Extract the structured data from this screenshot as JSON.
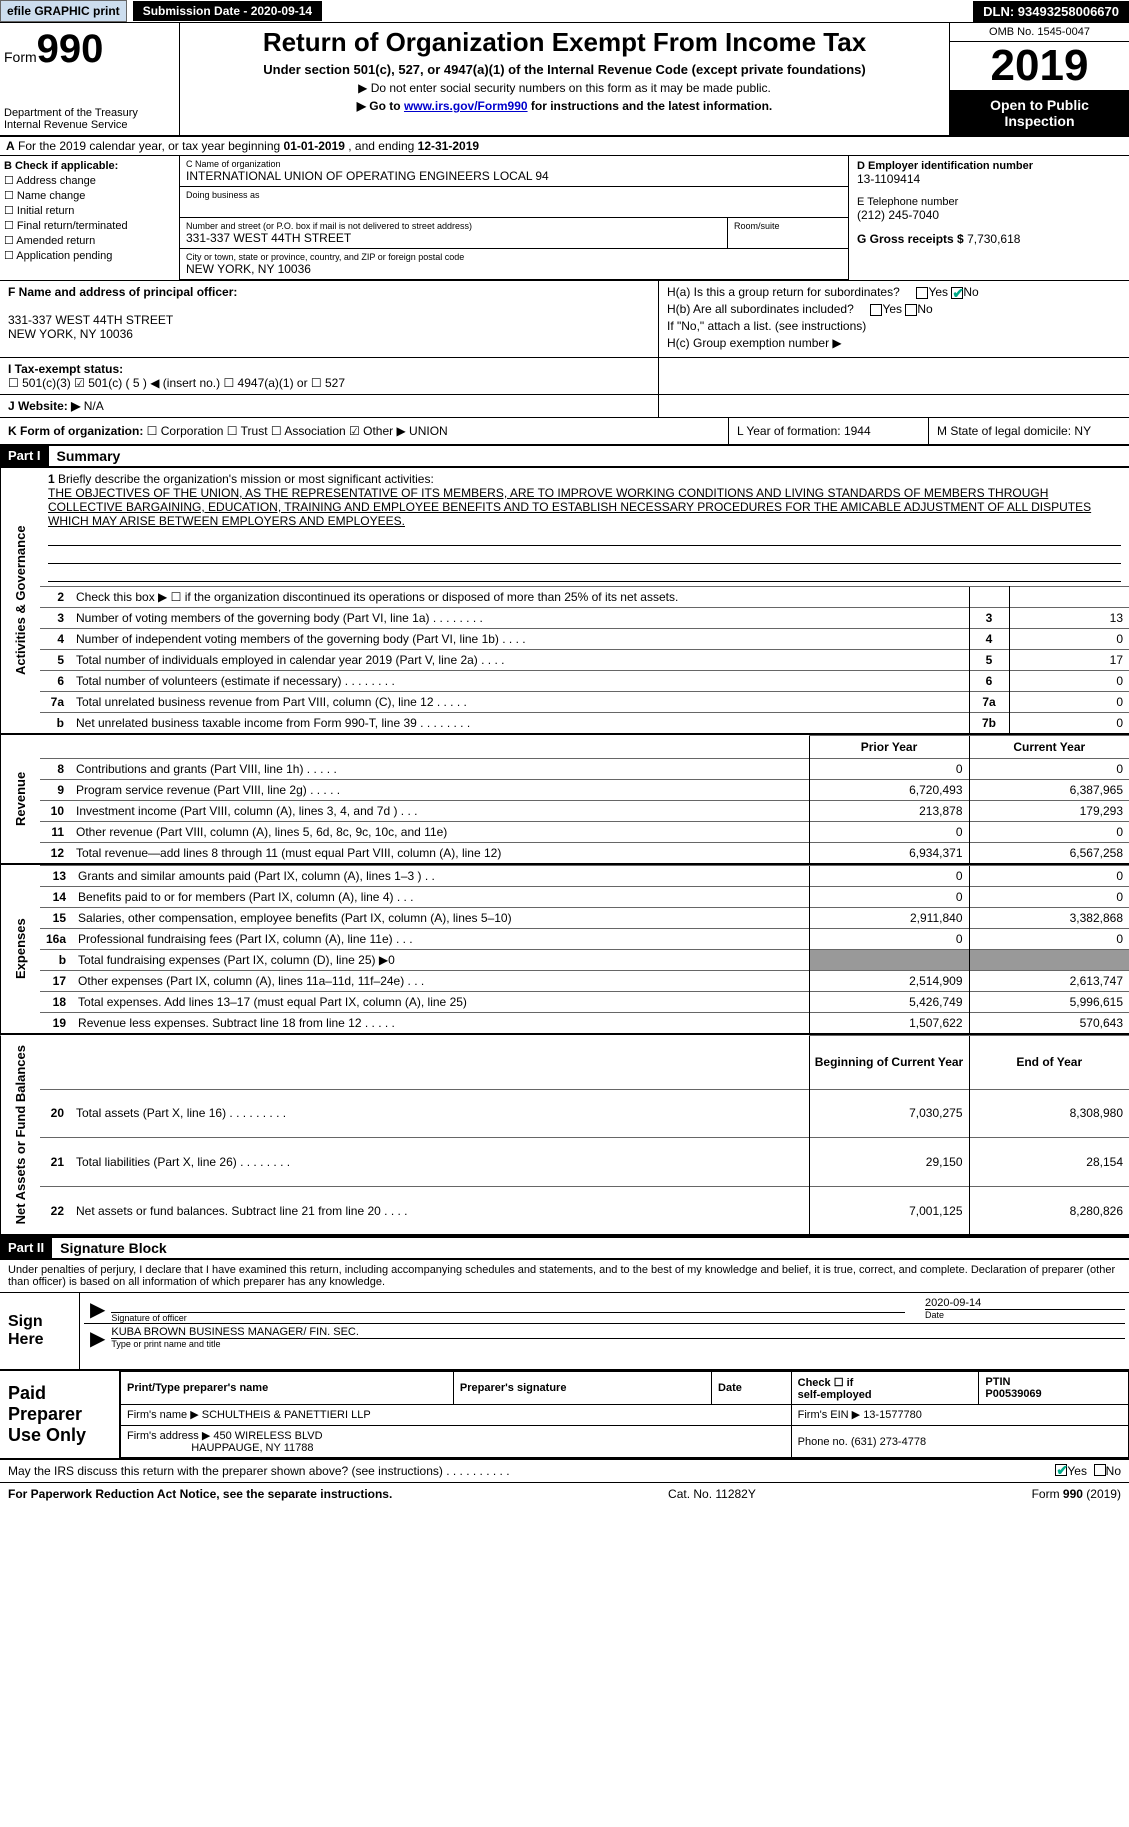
{
  "topbar": {
    "efile": "efile GRAPHIC print",
    "subdate_label": "Submission Date - 2020-09-14",
    "dln": "DLN: 93493258006670"
  },
  "header": {
    "form_prefix": "Form",
    "form_no": "990",
    "dept": "Department of the Treasury\nInternal Revenue Service",
    "title": "Return of Organization Exempt From Income Tax",
    "subtitle": "Under section 501(c), 527, or 4947(a)(1) of the Internal Revenue Code (except private foundations)",
    "note1": "▶ Do not enter social security numbers on this form as it may be made public.",
    "note2_pre": "▶ Go to ",
    "note2_link": "www.irs.gov/Form990",
    "note2_post": " for instructions and the latest information.",
    "omb": "OMB No. 1545-0047",
    "year": "2019",
    "open": "Open to Public Inspection"
  },
  "lineA": {
    "pre": "A",
    "txt": "For the 2019 calendar year, or tax year beginning ",
    "b1": "01-01-2019",
    "mid": " , and ending ",
    "b2": "12-31-2019"
  },
  "secB": {
    "hdr": "B Check if applicable:",
    "items": [
      "☐ Address change",
      "☐ Name change",
      "☐ Initial return",
      "☐ Final return/terminated",
      "☐ Amended return",
      "☐ Application pending"
    ]
  },
  "secC": {
    "name_lbl": "C Name of organization",
    "name": "INTERNATIONAL UNION OF OPERATING ENGINEERS LOCAL 94",
    "dba_lbl": "Doing business as",
    "addr_lbl": "Number and street (or P.O. box if mail is not delivered to street address)",
    "room_lbl": "Room/suite",
    "addr": "331-337 WEST 44TH STREET",
    "city_lbl": "City or town, state or province, country, and ZIP or foreign postal code",
    "city": "NEW YORK, NY  10036"
  },
  "secDE": {
    "d_lbl": "D Employer identification number",
    "d_val": "13-1109414",
    "e_lbl": "E Telephone number",
    "e_val": "(212) 245-7040",
    "g_lbl": "G Gross receipts $ ",
    "g_val": "7,730,618"
  },
  "secF": {
    "lbl": "F Name and address of principal officer:",
    "addr1": "331-337 WEST 44TH STREET",
    "addr2": "NEW YORK, NY 10036"
  },
  "secH": {
    "ha": "H(a)  Is this a group return for subordinates?",
    "hb": "H(b)  Are all subordinates included?",
    "hnote": "If \"No,\" attach a list. (see instructions)",
    "hc": "H(c)  Group exemption number ▶"
  },
  "secI": {
    "lbl": "I  Tax-exempt status:",
    "opts": "☐ 501(c)(3)   ☑ 501(c) ( 5 ) ◀ (insert no.)   ☐ 4947(a)(1) or   ☐ 527"
  },
  "secJ": {
    "lbl": "J  Website: ▶",
    "val": "N/A"
  },
  "secK": {
    "lbl": "K Form of organization:",
    "opts": "☐ Corporation  ☐ Trust  ☐ Association  ☑ Other ▶",
    "val": "UNION"
  },
  "secLM": {
    "l": "L Year of formation: 1944",
    "m": "M State of legal domicile: NY"
  },
  "part1": {
    "hdr": "Part I",
    "title": "Summary"
  },
  "mission": {
    "n": "1",
    "lbl": "Briefly describe the organization's mission or most significant activities:",
    "txt": "THE OBJECTIVES OF THE UNION, AS THE REPRESENTATIVE OF ITS MEMBERS, ARE TO IMPROVE WORKING CONDITIONS AND LIVING STANDARDS OF MEMBERS THROUGH COLLECTIVE BARGAINING, EDUCATION, TRAINING AND EMPLOYEE BENEFITS AND TO ESTABLISH NECESSARY PROCEDURES FOR THE AMICABLE ADJUSTMENT OF ALL DISPUTES WHICH MAY ARISE BETWEEN EMPLOYERS AND EMPLOYEES."
  },
  "gov_rows": [
    {
      "n": "2",
      "t": "Check this box ▶ ☐ if the organization discontinued its operations or disposed of more than 25% of its net assets.",
      "box": "",
      "v": ""
    },
    {
      "n": "3",
      "t": "Number of voting members of the governing body (Part VI, line 1a)  .  .  .  .  .  .  .  .",
      "box": "3",
      "v": "13"
    },
    {
      "n": "4",
      "t": "Number of independent voting members of the governing body (Part VI, line 1b)  .  .  .  .",
      "box": "4",
      "v": "0"
    },
    {
      "n": "5",
      "t": "Total number of individuals employed in calendar year 2019 (Part V, line 2a)  .  .  .  .",
      "box": "5",
      "v": "17"
    },
    {
      "n": "6",
      "t": "Total number of volunteers (estimate if necessary)  .  .  .  .  .  .  .  .",
      "box": "6",
      "v": "0"
    },
    {
      "n": "7a",
      "t": "Total unrelated business revenue from Part VIII, column (C), line 12  .  .  .  .  .",
      "box": "7a",
      "v": "0"
    },
    {
      "n": "b",
      "t": "Net unrelated business taxable income from Form 990-T, line 39  .  .  .  .  .  .  .  .",
      "box": "7b",
      "v": "0"
    }
  ],
  "col_hdrs": {
    "py": "Prior Year",
    "cy": "Current Year"
  },
  "rev_rows": [
    {
      "n": "8",
      "t": "Contributions and grants (Part VIII, line 1h)  .  .  .  .  .",
      "py": "0",
      "cy": "0"
    },
    {
      "n": "9",
      "t": "Program service revenue (Part VIII, line 2g)  .  .  .  .  .",
      "py": "6,720,493",
      "cy": "6,387,965"
    },
    {
      "n": "10",
      "t": "Investment income (Part VIII, column (A), lines 3, 4, and 7d )  .  .  .",
      "py": "213,878",
      "cy": "179,293"
    },
    {
      "n": "11",
      "t": "Other revenue (Part VIII, column (A), lines 5, 6d, 8c, 9c, 10c, and 11e)",
      "py": "0",
      "cy": "0"
    },
    {
      "n": "12",
      "t": "Total revenue—add lines 8 through 11 (must equal Part VIII, column (A), line 12)",
      "py": "6,934,371",
      "cy": "6,567,258"
    }
  ],
  "exp_rows": [
    {
      "n": "13",
      "t": "Grants and similar amounts paid (Part IX, column (A), lines 1–3 )  .  .",
      "py": "0",
      "cy": "0"
    },
    {
      "n": "14",
      "t": "Benefits paid to or for members (Part IX, column (A), line 4)  .  .  .",
      "py": "0",
      "cy": "0"
    },
    {
      "n": "15",
      "t": "Salaries, other compensation, employee benefits (Part IX, column (A), lines 5–10)",
      "py": "2,911,840",
      "cy": "3,382,868"
    },
    {
      "n": "16a",
      "t": "Professional fundraising fees (Part IX, column (A), line 11e)  .  .  .",
      "py": "0",
      "cy": "0"
    },
    {
      "n": "b",
      "t": "Total fundraising expenses (Part IX, column (D), line 25) ▶0",
      "py": "shade",
      "cy": "shade"
    },
    {
      "n": "17",
      "t": "Other expenses (Part IX, column (A), lines 11a–11d, 11f–24e)  .  .  .",
      "py": "2,514,909",
      "cy": "2,613,747"
    },
    {
      "n": "18",
      "t": "Total expenses. Add lines 13–17 (must equal Part IX, column (A), line 25)",
      "py": "5,426,749",
      "cy": "5,996,615"
    },
    {
      "n": "19",
      "t": "Revenue less expenses. Subtract line 18 from line 12  .  .  .  .  .",
      "py": "1,507,622",
      "cy": "570,643"
    }
  ],
  "bal_hdrs": {
    "b": "Beginning of Current Year",
    "e": "End of Year"
  },
  "bal_rows": [
    {
      "n": "20",
      "t": "Total assets (Part X, line 16)  .  .  .  .  .  .  .  .  .",
      "py": "7,030,275",
      "cy": "8,308,980"
    },
    {
      "n": "21",
      "t": "Total liabilities (Part X, line 26)  .  .  .  .  .  .  .  .",
      "py": "29,150",
      "cy": "28,154"
    },
    {
      "n": "22",
      "t": "Net assets or fund balances. Subtract line 21 from line 20  .  .  .  .",
      "py": "7,001,125",
      "cy": "8,280,826"
    }
  ],
  "part2": {
    "hdr": "Part II",
    "title": "Signature Block"
  },
  "sig": {
    "decl": "Under penalties of perjury, I declare that I have examined this return, including accompanying schedules and statements, and to the best of my knowledge and belief, it is true, correct, and complete. Declaration of preparer (other than officer) is based on all information of which preparer has any knowledge.",
    "sign_here": "Sign Here",
    "so_lbl": "Signature of officer",
    "date_lbl": "Date",
    "date": "2020-09-14",
    "name": "KUBA BROWN BUSINESS MANAGER/ FIN. SEC.",
    "name_lbl": "Type or print name and title"
  },
  "prep": {
    "left": "Paid Preparer Use Only",
    "h1": "Print/Type preparer's name",
    "h2": "Preparer's signature",
    "h3": "Date",
    "h4_a": "Check ☐ if",
    "h4_b": "self-employed",
    "h5": "PTIN",
    "ptin": "P00539069",
    "firm_lbl": "Firm's name  ▶",
    "firm": "SCHULTHEIS & PANETTIERI LLP",
    "ein_lbl": "Firm's EIN ▶",
    "ein": "13-1577780",
    "addr_lbl": "Firm's address ▶",
    "addr1": "450 WIRELESS BLVD",
    "addr2": "HAUPPAUGE, NY  11788",
    "phone_lbl": "Phone no.",
    "phone": "(631) 273-4778"
  },
  "discuss": "May the IRS discuss this return with the preparer shown above? (see instructions)  .  .  .  .  .  .  .  .  .  .",
  "footer": {
    "l": "For Paperwork Reduction Act Notice, see the separate instructions.",
    "m": "Cat. No. 11282Y",
    "r": "Form 990 (2019)"
  },
  "vlabels": {
    "ag": "Activities & Governance",
    "rev": "Revenue",
    "exp": "Expenses",
    "bal": "Net Assets or Fund Balances"
  }
}
